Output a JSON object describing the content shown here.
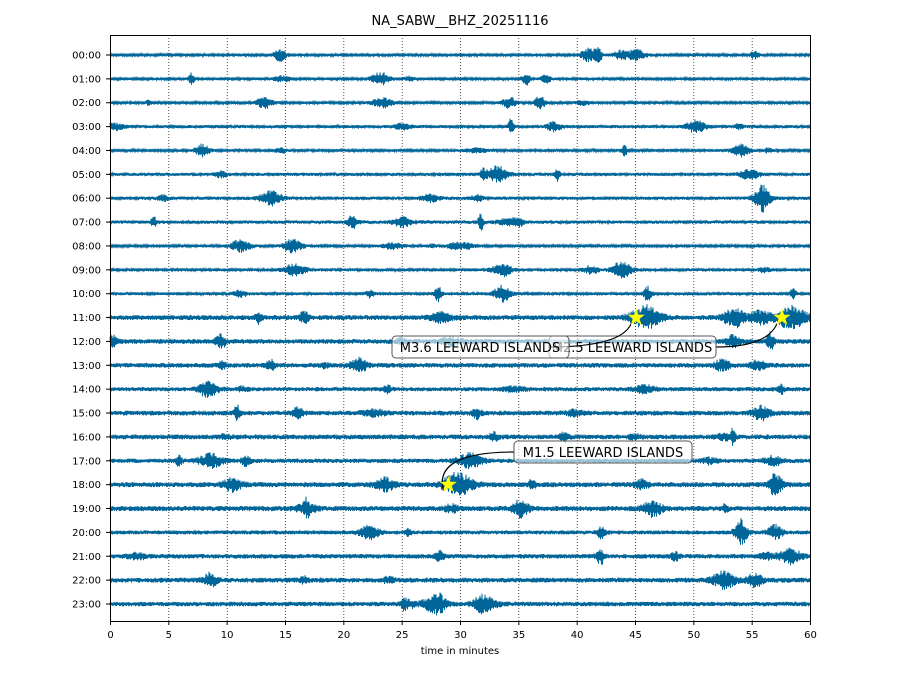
{
  "chart_data": {
    "type": "line",
    "title": "NA_SABW__BHZ_20251116",
    "xlabel": "time in minutes",
    "ylabel": "",
    "xlim": [
      0,
      60
    ],
    "x_ticks": [
      0,
      5,
      10,
      15,
      20,
      25,
      30,
      35,
      40,
      45,
      50,
      55,
      60
    ],
    "grid": "vertical dotted at every 5 minutes",
    "row_labels": [
      "00:00",
      "01:00",
      "02:00",
      "03:00",
      "04:00",
      "05:00",
      "06:00",
      "07:00",
      "08:00",
      "09:00",
      "10:00",
      "11:00",
      "12:00",
      "13:00",
      "14:00",
      "15:00",
      "16:00",
      "17:00",
      "18:00",
      "19:00",
      "20:00",
      "21:00",
      "22:00",
      "23:00"
    ],
    "trace_color": "#006699",
    "events": [
      {
        "label": "M3.6 LEEWARD ISLANDS",
        "row": "11:00",
        "minute": 45.1
      },
      {
        "label": "M2.5 LEEWARD ISLANDS",
        "row": "11:00",
        "minute": 57.6
      },
      {
        "label": "M1.5 LEEWARD ISLANDS",
        "row": "18:00",
        "minute": 29.0
      }
    ],
    "marker_color": "#ffff00"
  }
}
